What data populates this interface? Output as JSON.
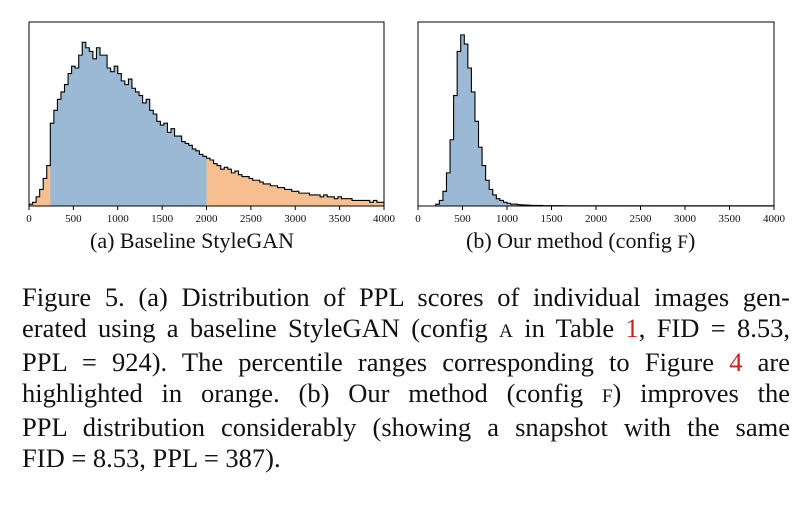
{
  "chart_data": [
    {
      "id": "a",
      "type": "histogram",
      "title": "",
      "subcaption": "(a) Baseline StyleGAN",
      "xlabel": "",
      "ylabel": "",
      "xlim": [
        0,
        4000
      ],
      "ylim": [
        0,
        100
      ],
      "xticks": [
        "0",
        "500",
        "1000",
        "1500",
        "2000",
        "2500",
        "3000",
        "3500",
        "4000"
      ],
      "bin_width": 40,
      "colors": {
        "main": "#9bb9d4",
        "highlight": "#f7bf8f",
        "edge": "#000000"
      },
      "highlight_ranges": [
        [
          0,
          240
        ],
        [
          2000,
          4000
        ]
      ],
      "values": [
        1,
        2,
        5,
        9,
        15,
        22,
        45,
        52,
        58,
        62,
        66,
        72,
        76,
        75,
        82,
        89,
        86,
        84,
        80,
        86,
        82,
        82,
        75,
        73,
        76,
        72,
        68,
        66,
        69,
        64,
        62,
        60,
        56,
        58,
        52,
        50,
        46,
        44,
        45,
        40,
        42,
        38,
        38,
        35,
        34,
        33,
        31,
        30,
        28,
        27,
        26,
        25,
        23,
        22,
        20,
        21,
        20,
        18,
        19,
        17,
        16,
        16,
        15,
        14,
        14,
        13,
        12,
        12,
        11,
        11,
        10,
        10,
        9,
        9,
        8,
        8,
        7,
        7,
        7,
        6,
        6,
        6,
        5,
        6,
        5,
        5,
        4,
        5,
        4,
        4,
        4,
        3,
        3,
        3,
        3,
        3,
        2,
        3,
        2,
        2
      ]
    },
    {
      "id": "b",
      "type": "histogram",
      "title": "",
      "subcaption_prefix": "(b) Our method (config ",
      "subcaption_config": "F",
      "subcaption_suffix": ")",
      "xlabel": "",
      "ylabel": "",
      "xlim": [
        0,
        4000
      ],
      "ylim": [
        0,
        100
      ],
      "xticks": [
        "0",
        "500",
        "1000",
        "1500",
        "2000",
        "2500",
        "3000",
        "3500",
        "4000"
      ],
      "bin_width": 40,
      "colors": {
        "main": "#9bb9d4",
        "edge": "#000000"
      },
      "values": [
        0,
        0,
        0,
        0,
        0,
        1,
        3,
        8,
        18,
        36,
        60,
        84,
        93,
        88,
        75,
        62,
        46,
        32,
        22,
        14,
        9,
        6,
        4,
        3,
        2,
        1.5,
        1,
        1,
        0.7,
        0.6,
        0.5,
        0.4,
        0.3,
        0.3,
        0.3,
        0.2,
        0.2,
        0.2,
        0.2,
        0.2,
        0.2,
        0.1,
        0.1,
        0.1,
        0.1,
        0.1,
        0.1,
        0.1,
        0.1,
        0.1,
        0.1,
        0.1,
        0.1,
        0.1,
        0.1,
        0.1,
        0.1,
        0.1,
        0.1,
        0.1,
        0.1,
        0.1,
        0.1,
        0.1,
        0.1,
        0.1,
        0.1,
        0.1,
        0.1,
        0.1,
        0.1,
        0.1,
        0.1,
        0.1,
        0.1,
        0.1,
        0.1,
        0.1,
        0.1,
        0.1,
        0.1,
        0.1,
        0.1,
        0.1,
        0.1,
        0.1,
        0.1,
        0.1,
        0.1,
        0.1,
        0.1,
        0.1,
        0.1,
        0.1,
        0.1,
        0.1,
        0.1,
        0.1,
        0.1,
        0.1
      ]
    }
  ],
  "caption": {
    "label": "Figure 5.",
    "l1": "  (a) Distribution of PPL scores of individual images gen-",
    "l2a": "erated using a baseline StyleGAN (config ",
    "l2cfg": "A",
    "l2b": " in Table ",
    "l2ref": "1",
    "l2c": ", FID = 8.53,",
    "l3a": "PPL = 924).  The percentile ranges corresponding to Figure ",
    "l3ref": "4",
    "l3b": " are",
    "l4a": "highlighted in orange.  (b) Our method (config ",
    "l4cfg": "F",
    "l4b": ") improves the",
    "l5": "PPL distribution considerably (showing a snapshot with the same",
    "l6": "FID = 8.53, PPL = 387)."
  }
}
